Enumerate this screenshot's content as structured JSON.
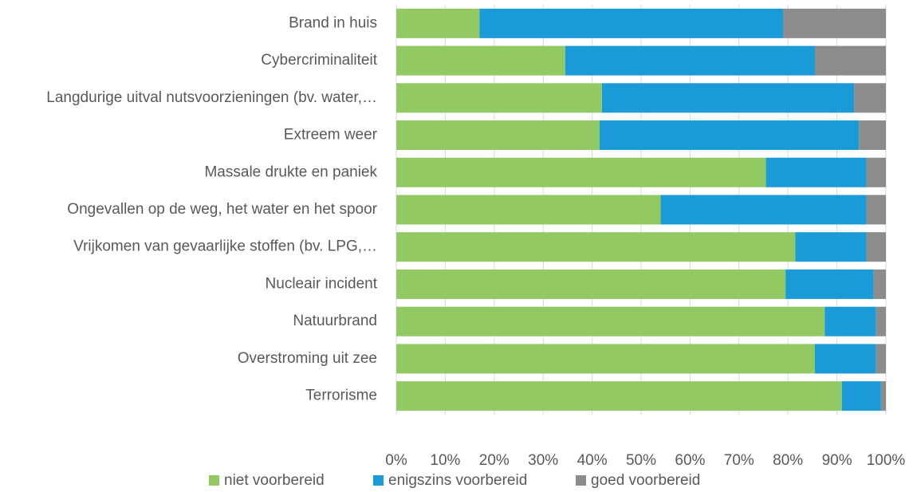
{
  "chart_data": {
    "type": "stacked-barh",
    "categories": [
      "Brand in huis",
      "Cybercriminaliteit",
      "Langdurige uitval nutsvoorzieningen (bv. water,…",
      "Extreem weer",
      "Massale drukte en paniek",
      "Ongevallen op de weg, het water en het spoor",
      "Vrijkomen van gevaarlijke stoffen (bv. LPG,…",
      "Nucleair incident",
      "Natuurbrand",
      "Overstroming uit zee",
      "Terrorisme"
    ],
    "series": [
      {
        "name": "niet voorbereid",
        "color": "#92c962",
        "values": [
          17,
          34.5,
          42,
          41.5,
          75.5,
          54,
          81.5,
          79.5,
          87.5,
          85.5,
          91
        ]
      },
      {
        "name": "enigszins voorbereid",
        "color": "#1a9bd7",
        "values": [
          62,
          51,
          51.5,
          53,
          20.5,
          42,
          14.5,
          18,
          10.5,
          12.5,
          8
        ]
      },
      {
        "name": "goed voorbereid",
        "color": "#8c8c8c",
        "values": [
          21,
          14.5,
          6.5,
          5.5,
          4,
          4,
          4,
          2.5,
          2,
          2,
          1
        ]
      }
    ],
    "xlim": [
      0,
      100
    ],
    "xticks": [
      {
        "value": 0,
        "label": "0%"
      },
      {
        "value": 10,
        "label": "10%"
      },
      {
        "value": 20,
        "label": "20%"
      },
      {
        "value": 30,
        "label": "30%"
      },
      {
        "value": 40,
        "label": "40%"
      },
      {
        "value": 50,
        "label": "50%"
      },
      {
        "value": 60,
        "label": "60%"
      },
      {
        "value": 70,
        "label": "70%"
      },
      {
        "value": 80,
        "label": "80%"
      },
      {
        "value": 90,
        "label": "90%"
      },
      {
        "value": 100,
        "label": "100%"
      }
    ],
    "grid": true,
    "legend": "bottom"
  }
}
